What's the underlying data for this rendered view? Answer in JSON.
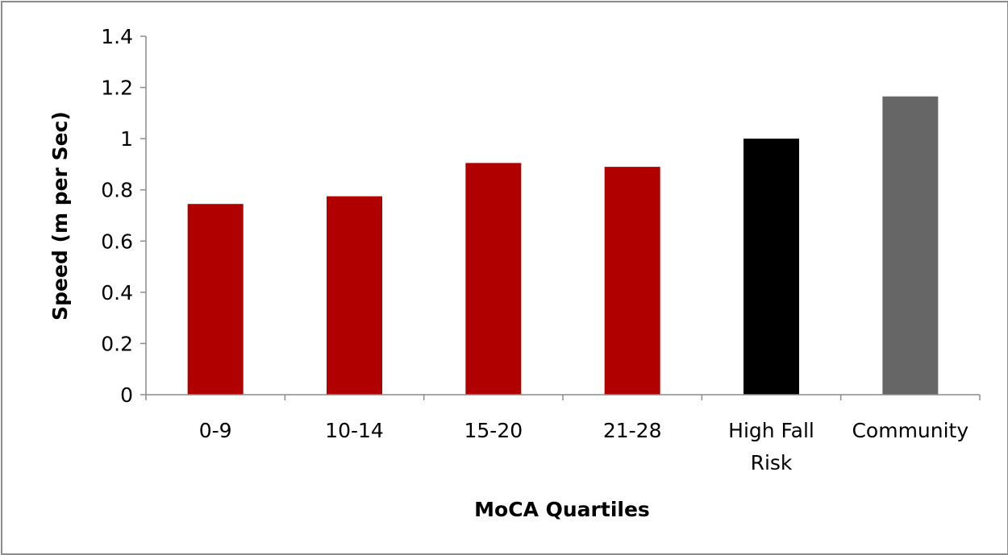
{
  "chart_data": {
    "type": "bar",
    "title": "",
    "xlabel": "MoCA Quartiles",
    "ylabel": "Speed (m per Sec)",
    "ylim": [
      0,
      1.4
    ],
    "y_ticks": [
      "0",
      "0.2",
      "0.4",
      "0.6",
      "0.8",
      "1",
      "1.2",
      "1.4"
    ],
    "y_tick_values": [
      0,
      0.2,
      0.4,
      0.6,
      0.8,
      1.0,
      1.2,
      1.4
    ],
    "grid": false,
    "legend": "none",
    "categories": [
      [
        "0-9"
      ],
      [
        "10-14"
      ],
      [
        "15-20"
      ],
      [
        "21-28"
      ],
      [
        "High Fall",
        "Risk"
      ],
      [
        "Community"
      ]
    ],
    "values": [
      0.745,
      0.775,
      0.905,
      0.89,
      1.0,
      1.165
    ],
    "colors": [
      "#b00000",
      "#b00000",
      "#b00000",
      "#b00000",
      "#000000",
      "#666666"
    ]
  }
}
